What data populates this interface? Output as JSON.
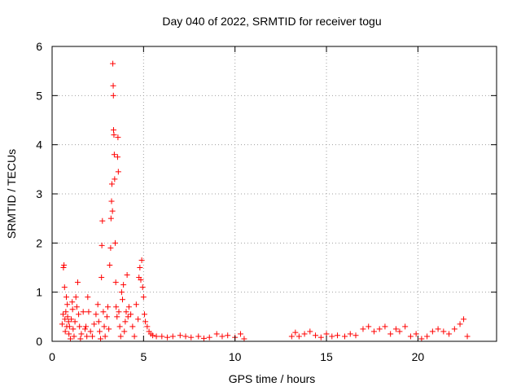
{
  "chart_data": {
    "type": "scatter",
    "title": "Day 040 of 2022, SRMTID for receiver togu",
    "xlabel": "GPS time / hours",
    "ylabel": "SRMTID / TECUs",
    "xlim": [
      0,
      24.3
    ],
    "ylim": [
      0,
      6
    ],
    "xticks": [
      0,
      5,
      10,
      15,
      20
    ],
    "yticks": [
      0,
      1,
      2,
      3,
      4,
      5,
      6
    ],
    "grid": true,
    "marker": "+",
    "series": [
      {
        "name": "SRMTID",
        "color": "#ff0000",
        "points": [
          [
            0.55,
            0.35
          ],
          [
            0.6,
            0.55
          ],
          [
            0.62,
            1.5
          ],
          [
            0.65,
            1.55
          ],
          [
            0.68,
            1.1
          ],
          [
            0.7,
            0.45
          ],
          [
            0.72,
            0.2
          ],
          [
            0.75,
            0.6
          ],
          [
            0.78,
            0.9
          ],
          [
            0.8,
            0.3
          ],
          [
            0.83,
            0.75
          ],
          [
            0.85,
            0.5
          ],
          [
            0.9,
            0.4
          ],
          [
            0.92,
            0.15
          ],
          [
            0.95,
            0.3
          ],
          [
            1.0,
            0.05
          ],
          [
            1.05,
            0.45
          ],
          [
            1.1,
            0.8
          ],
          [
            1.12,
            0.65
          ],
          [
            1.15,
            0.25
          ],
          [
            1.2,
            0.1
          ],
          [
            1.25,
            0.4
          ],
          [
            1.3,
            0.9
          ],
          [
            1.35,
            0.7
          ],
          [
            1.4,
            1.2
          ],
          [
            1.45,
            0.55
          ],
          [
            1.5,
            0.3
          ],
          [
            1.55,
            0.05
          ],
          [
            1.6,
            0.15
          ],
          [
            1.7,
            0.6
          ],
          [
            1.8,
            0.25
          ],
          [
            1.85,
            0.3
          ],
          [
            1.9,
            0.1
          ],
          [
            1.95,
            0.9
          ],
          [
            2.0,
            0.6
          ],
          [
            2.1,
            0.2
          ],
          [
            2.2,
            0.1
          ],
          [
            2.3,
            0.35
          ],
          [
            2.4,
            0.55
          ],
          [
            2.5,
            0.75
          ],
          [
            2.55,
            0.4
          ],
          [
            2.6,
            0.2
          ],
          [
            2.65,
            0.05
          ],
          [
            2.7,
            1.3
          ],
          [
            2.72,
            1.95
          ],
          [
            2.75,
            2.45
          ],
          [
            2.8,
            0.6
          ],
          [
            2.85,
            0.3
          ],
          [
            2.9,
            0.1
          ],
          [
            3.0,
            0.5
          ],
          [
            3.05,
            0.7
          ],
          [
            3.1,
            0.25
          ],
          [
            3.15,
            1.55
          ],
          [
            3.2,
            1.9
          ],
          [
            3.22,
            2.5
          ],
          [
            3.25,
            2.85
          ],
          [
            3.27,
            3.2
          ],
          [
            3.3,
            2.65
          ],
          [
            3.32,
            5.65
          ],
          [
            3.34,
            5.2
          ],
          [
            3.35,
            5.0
          ],
          [
            3.36,
            4.3
          ],
          [
            3.38,
            4.2
          ],
          [
            3.4,
            3.8
          ],
          [
            3.42,
            3.3
          ],
          [
            3.45,
            2.0
          ],
          [
            3.48,
            1.2
          ],
          [
            3.5,
            0.7
          ],
          [
            3.55,
            0.5
          ],
          [
            3.58,
            3.75
          ],
          [
            3.6,
            4.15
          ],
          [
            3.62,
            3.45
          ],
          [
            3.65,
            0.6
          ],
          [
            3.7,
            0.3
          ],
          [
            3.75,
            0.1
          ],
          [
            3.8,
            1.0
          ],
          [
            3.85,
            0.85
          ],
          [
            3.9,
            1.15
          ],
          [
            3.95,
            0.2
          ],
          [
            4.0,
            0.4
          ],
          [
            4.05,
            0.6
          ],
          [
            4.1,
            1.35
          ],
          [
            4.15,
            0.5
          ],
          [
            4.2,
            0.7
          ],
          [
            4.3,
            0.55
          ],
          [
            4.4,
            0.3
          ],
          [
            4.5,
            0.1
          ],
          [
            4.6,
            0.75
          ],
          [
            4.7,
            0.45
          ],
          [
            4.75,
            1.3
          ],
          [
            4.8,
            1.5
          ],
          [
            4.85,
            1.25
          ],
          [
            4.9,
            1.65
          ],
          [
            4.95,
            1.1
          ],
          [
            5.0,
            0.9
          ],
          [
            5.05,
            0.55
          ],
          [
            5.1,
            0.4
          ],
          [
            5.2,
            0.3
          ],
          [
            5.3,
            0.2
          ],
          [
            5.4,
            0.15
          ],
          [
            5.5,
            0.12
          ],
          [
            5.7,
            0.1
          ],
          [
            6.0,
            0.1
          ],
          [
            6.3,
            0.08
          ],
          [
            6.6,
            0.1
          ],
          [
            7.0,
            0.12
          ],
          [
            7.3,
            0.1
          ],
          [
            7.6,
            0.08
          ],
          [
            8.0,
            0.1
          ],
          [
            8.3,
            0.06
          ],
          [
            8.6,
            0.08
          ],
          [
            9.0,
            0.15
          ],
          [
            9.3,
            0.1
          ],
          [
            9.6,
            0.12
          ],
          [
            10.0,
            0.08
          ],
          [
            10.3,
            0.15
          ],
          [
            10.5,
            0.05
          ],
          [
            13.1,
            0.1
          ],
          [
            13.3,
            0.18
          ],
          [
            13.5,
            0.1
          ],
          [
            13.8,
            0.15
          ],
          [
            14.1,
            0.2
          ],
          [
            14.4,
            0.12
          ],
          [
            14.7,
            0.08
          ],
          [
            15.0,
            0.15
          ],
          [
            15.3,
            0.1
          ],
          [
            15.6,
            0.12
          ],
          [
            16.0,
            0.1
          ],
          [
            16.3,
            0.15
          ],
          [
            16.6,
            0.12
          ],
          [
            17.0,
            0.25
          ],
          [
            17.3,
            0.3
          ],
          [
            17.6,
            0.2
          ],
          [
            17.9,
            0.25
          ],
          [
            18.2,
            0.3
          ],
          [
            18.5,
            0.15
          ],
          [
            18.8,
            0.25
          ],
          [
            19.0,
            0.2
          ],
          [
            19.3,
            0.3
          ],
          [
            19.6,
            0.1
          ],
          [
            19.9,
            0.15
          ],
          [
            20.2,
            0.05
          ],
          [
            20.5,
            0.1
          ],
          [
            20.8,
            0.2
          ],
          [
            21.1,
            0.25
          ],
          [
            21.4,
            0.2
          ],
          [
            21.7,
            0.15
          ],
          [
            22.0,
            0.25
          ],
          [
            22.3,
            0.35
          ],
          [
            22.5,
            0.45
          ],
          [
            22.7,
            0.1
          ]
        ]
      }
    ]
  }
}
